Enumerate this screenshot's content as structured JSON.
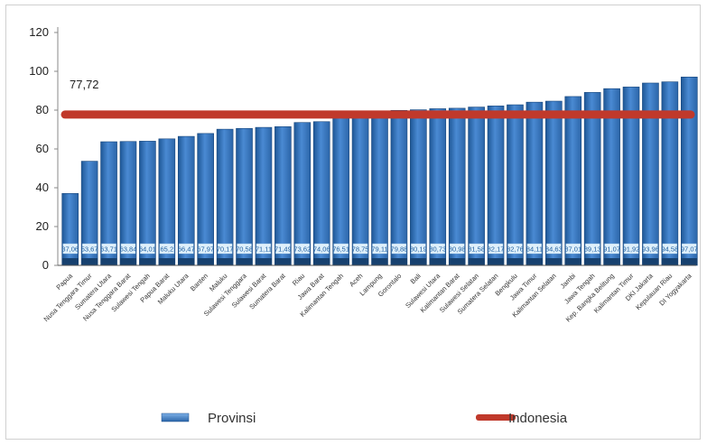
{
  "chart_data": {
    "type": "bar",
    "categories": [
      "Papua",
      "Nusa Tenggara Timur",
      "Sumatera Utara",
      "Nusa Tenggara Barat",
      "Sulawesi Tengah",
      "Papua Barat",
      "Maluku Utara",
      "Banten",
      "Maluku",
      "Sulawesi Tenggara",
      "Sulawesi Barat",
      "Sumatera Barat",
      "Riau",
      "Jawa Barat",
      "Kalimantan Tengah",
      "Aceh",
      "Lampung",
      "Gorontalo",
      "Bali",
      "Sulawesi Utara",
      "Kalimantan Barat",
      "Sulawesi Selatan",
      "Sumatera Selatan",
      "Bengkulu",
      "Jawa Timur",
      "Kalimantan Selatan",
      "Jambi",
      "Jawa Tengah",
      "Kep. Bangka Belitung",
      "Kalimantan Timur",
      "DKI Jakarta",
      "Kepulauan Riau",
      "DI Yogyakarta"
    ],
    "series": [
      {
        "name": "Provinsi",
        "values": [
          37.06,
          53.67,
          63.71,
          63.84,
          64.01,
          65.2,
          66.47,
          67.97,
          70.17,
          70.58,
          71.11,
          71.49,
          73.62,
          74.06,
          76.51,
          78.75,
          79.11,
          79.88,
          80.19,
          80.73,
          80.98,
          81.58,
          82.17,
          82.76,
          84.11,
          84.63,
          87.01,
          89.13,
          91.07,
          91.92,
          93.96,
          94.58,
          97.07
        ],
        "labels": [
          "37,06",
          "53,67",
          "63,71",
          "63,84",
          "64,01",
          "65,2",
          "66,47",
          "67,97",
          "70,17",
          "70,58",
          "71,11",
          "71,49",
          "73,62",
          "74,06",
          "76,51",
          "78,75",
          "79,11",
          "79,88",
          "80,19",
          "80,73",
          "80,98",
          "81,58",
          "82,17",
          "82,76",
          "84,11",
          "84,63",
          "87,01",
          "89,13",
          "91,07",
          "91,92",
          "93,96",
          "94,58",
          "97,07"
        ]
      },
      {
        "name": "Indonesia",
        "type": "line",
        "value": 77.72,
        "label": "77,72"
      }
    ],
    "yticks": [
      "120",
      "100",
      "80",
      "60",
      "40",
      "20",
      "0"
    ],
    "ylim": [
      0,
      120
    ],
    "grid": false,
    "legend": "bottom",
    "colors": {
      "bar": "#3f7fc9",
      "bar_dark": "#1a4f8a",
      "bar_light": "#7eb1e8",
      "reference": "#c0392b",
      "value_box": "#dff0fb"
    }
  }
}
